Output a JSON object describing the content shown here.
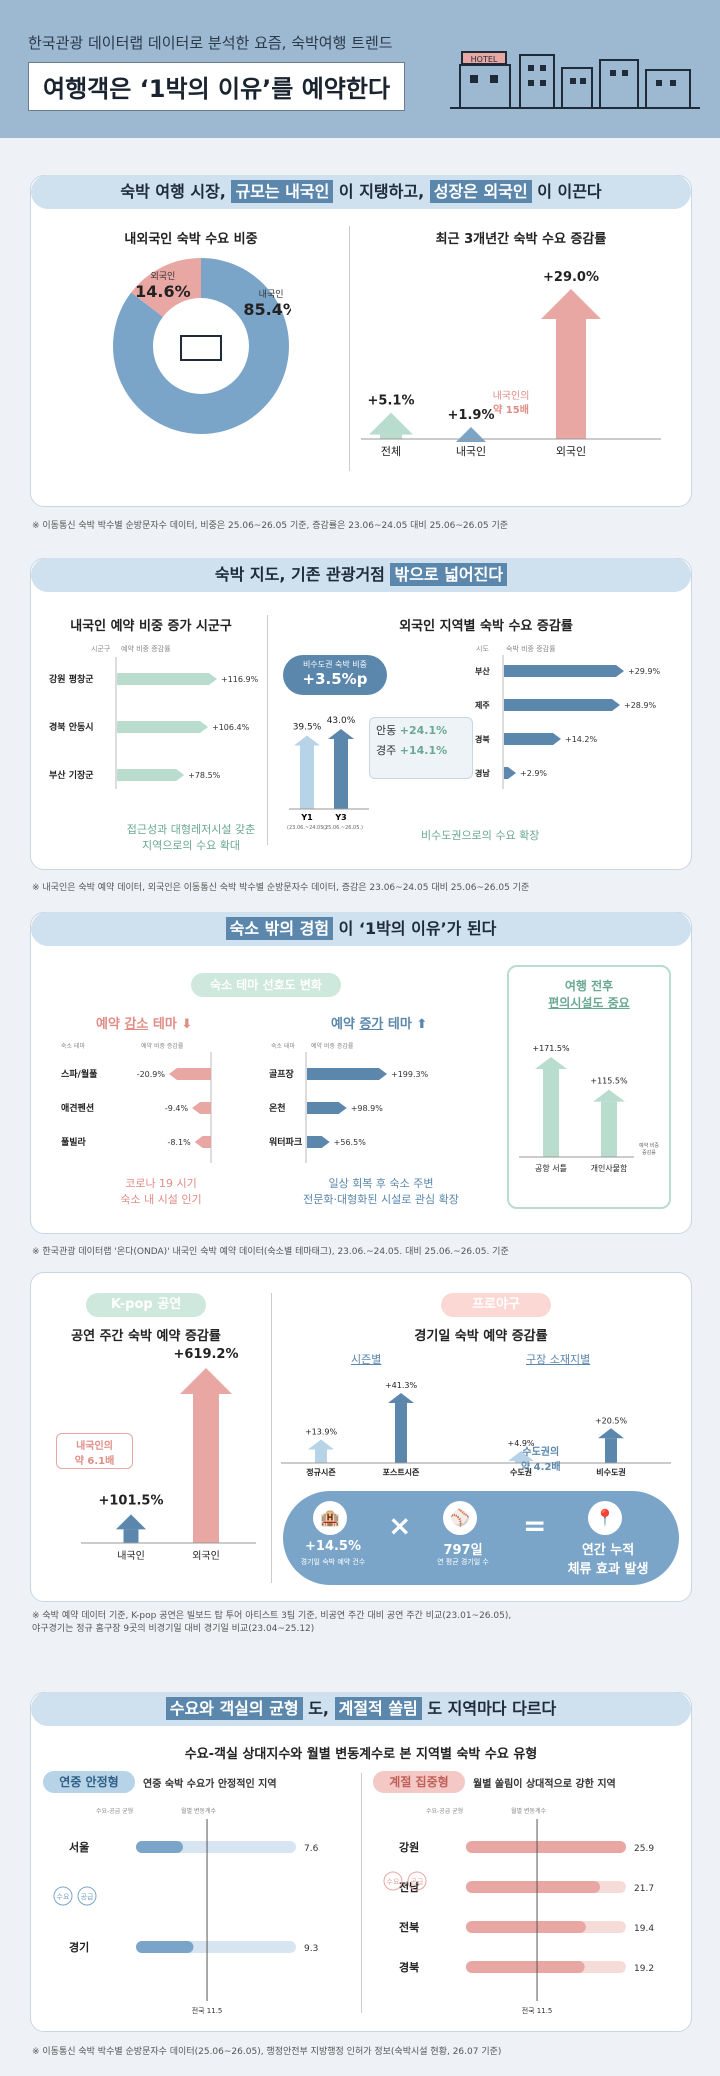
{
  "header": {
    "subtitle": "한국관광 데이터랩 데이터로 분석한 요즘, 숙박여행 트렌드",
    "title": "여행객은 ‘1박의 이유’를 예약한다",
    "hotel_sign": "HOTEL"
  },
  "s1": {
    "title_a": "숙박 여행 시장, ",
    "title_b": "규모는 내국인",
    "title_c": " 이 지탱하고, ",
    "title_d": "성장은 외국인",
    "title_e": " 이 이끈다",
    "pie_title": "내외국인 숙박 수요 비중",
    "growth_title": "최근 3개년간 숙박 수요 증감률",
    "note_foreign_1": "내국인의",
    "note_foreign_2": "약 15배",
    "source": "※ 이동통신 숙박 박수별 순방문자수 데이터, 비중은 25.06~26.05 기준, 증감률은 23.06~24.05 대비 25.06~26.05 기준"
  },
  "s2": {
    "title_a": "숙박 지도, 기존 관광거점 ",
    "title_b": "밖으로 넓어진다",
    "left_title": "내국인 예약 비중 증가 시군구",
    "right_title": "외국인 지역별 숙박 수요 증감률",
    "col_a": "시군구",
    "col_b": "예약 비중 증감률",
    "left_note_1": "접근성과 대형레저시설 갖춘",
    "left_note_2": "지역으로의 수요 확대",
    "mid_badge_1": "비수도권 숙박 비중",
    "mid_badge_2": "+3.5%p",
    "mid_y1": "Y1",
    "mid_y3": "Y3",
    "mid_y1_sub": "(23.06.~24.05.)",
    "mid_y3_sub": "(25.06.~26.05.)",
    "mid_v1": "39.5%",
    "mid_v2": "43.0%",
    "city_1": "안동",
    "city_1_v": "+24.1%",
    "city_2": "경주",
    "city_2_v": "+14.1%",
    "right_col_a": "시도",
    "right_col_b": "숙박 비중 증감률",
    "right_note": "비수도권으로의 수요 확장",
    "source": "※ 내국인은 숙박 예약 데이터, 외국인은 이동통신 숙박 박수별 순방문자수 데이터, 증감은 23.06~24.05 대비 25.06~26.05 기준"
  },
  "s3": {
    "title_a": "숙소 밖의 경험",
    "title_b": " 이 ‘1박의 이유’가 된다",
    "theme_pill": "숙소 테마 선호도 변화",
    "dec_title_a": "예약 ",
    "dec_title_b": "감소",
    "dec_title_c": " 테마",
    "inc_title_a": "예약 ",
    "inc_title_b": "증가",
    "inc_title_c": " 테마",
    "col_a": "숙소 테마",
    "col_b": "예약 비중 증감률",
    "dec_note_1": "코로나 19 시기",
    "dec_note_2": "숙소 내 시설 인기",
    "inc_note_1": "일상 회복 후 숙소 주변",
    "inc_note_2": "전문화·대형화된 시설로 관심 확장",
    "conv_title_1": "여행 전후",
    "conv_title_2": "편의시설도 중요",
    "conv_legend_1": "예약 비중",
    "conv_legend_2": "증감률",
    "source": "※ 한국관광 데이터랩 '온다(ONDA)' 내국인 숙박 예약 데이터(숙소별 테마태그), 23.06.~24.05. 대비 25.06.~26.05. 기준"
  },
  "s4": {
    "kpop_pill": "K-pop 공연",
    "kpop_title": "공연 주간 숙박 예약 증감률",
    "kpop_note_1": "내국인의",
    "kpop_note_2": "약 6.1배",
    "base_pill": "프로야구",
    "base_title": "경기일 숙박 예약 증감률",
    "season_label": "시즌별",
    "region_label": "구장 소재지별",
    "region_note_1": "수도권의",
    "region_note_2": "약 4.2배",
    "bottom_1_val": "+14.5%",
    "bottom_1_lbl": "경기일 숙박 예약 건수",
    "bottom_2_val": "797일",
    "bottom_2_lbl": "연 평균 경기일 수",
    "bottom_3_val_1": "연간 누적",
    "bottom_3_val_2": "체류 효과 발생",
    "source_1": "※ 숙박 예약 데이터 기준, K-pop 공연은 빌보드 탑 투어 아티스트 3팀 기준, 비공연 주간 대비 공연 주간 비교(23.01~26.05),",
    "source_2": "야구경기는 정규 홈구장 9곳의 비경기일 대비 경기일 비교(23.04~25.12)"
  },
  "s5": {
    "title_a": "수요와 객실의 균형",
    "title_b": " 도, ",
    "title_c": "계절적 쏠림",
    "title_d": " 도 지역마다 다르다",
    "subtitle": "수요-객실 상대지수와 월별 변동계수로 본 지역별 숙박 수요 유형",
    "stable_pill": "연중 안정형",
    "stable_desc": "연중 숙박 수요가 안정적인 지역",
    "season_pill": "계절 집중형",
    "season_desc": "월별 쏠림이 상대적으로 강한 지역",
    "col_a": "수요-공급 균형",
    "col_b": "월별 변동계수",
    "avg_label": "전국 11.5",
    "legend_a": "수요",
    "legend_b": "공급",
    "source": "※ 이동통신 숙박 박수별 순방문자수 데이터(25.06~26.05), 행정안전부 지방행정 인허가 정보(숙박시설 현황, 26.07 기준)"
  },
  "chart_data": [
    {
      "type": "pie",
      "title": "내외국인 숙박 수요 비중",
      "labels": [
        "외국인",
        "내국인"
      ],
      "values": [
        14.6,
        85.4
      ],
      "colors": [
        "#e8a7a3",
        "#7ba5c8"
      ]
    },
    {
      "type": "bar",
      "title": "최근 3개년간 숙박 수요 증감률",
      "categories": [
        "전체",
        "내국인",
        "외국인"
      ],
      "values": [
        5.1,
        1.9,
        29.0
      ],
      "labels": [
        "+5.1%",
        "+1.9%",
        "+29.0%"
      ],
      "colors": [
        "#b8dccd",
        "#7ba5c8",
        "#e8a7a3"
      ]
    },
    {
      "type": "bar",
      "title": "내국인 예약 비중 증가 시군구",
      "categories": [
        "강원 평창군",
        "경북 안동시",
        "부산 기장군"
      ],
      "values": [
        116.9,
        106.4,
        78.5
      ],
      "labels": [
        "+116.9%",
        "+106.4%",
        "+78.5%"
      ]
    },
    {
      "type": "bar",
      "title": "비수도권 숙박 비중",
      "categories": [
        "Y1",
        "Y3"
      ],
      "values": [
        39.5,
        43.0
      ],
      "labels": [
        "39.5%",
        "43.0%"
      ]
    },
    {
      "type": "bar",
      "title": "외국인 지역별 숙박 수요 증감률",
      "categories": [
        "부산",
        "제주",
        "경북",
        "경남"
      ],
      "values": [
        29.9,
        28.9,
        14.2,
        2.9
      ],
      "labels": [
        "+29.9%",
        "+28.9%",
        "+14.2%",
        "+2.9%"
      ]
    },
    {
      "type": "bar",
      "title": "예약 감소 테마",
      "categories": [
        "스파/월풀",
        "애견펜션",
        "풀빌라"
      ],
      "values": [
        -20.9,
        -9.4,
        -8.1
      ],
      "labels": [
        "-20.9%",
        "-9.4%",
        "-8.1%"
      ]
    },
    {
      "type": "bar",
      "title": "예약 증가 테마",
      "categories": [
        "골프장",
        "온천",
        "워터파크"
      ],
      "values": [
        199.3,
        98.9,
        56.5
      ],
      "labels": [
        "+199.3%",
        "+98.9%",
        "+56.5%"
      ]
    },
    {
      "type": "bar",
      "title": "여행 전후 편의시설도 중요",
      "categories": [
        "공항 서틀",
        "개인사물함"
      ],
      "values": [
        171.5,
        115.5
      ],
      "labels": [
        "+171.5%",
        "+115.5%"
      ]
    },
    {
      "type": "bar",
      "title": "공연 주간 숙박 예약 증감률",
      "categories": [
        "내국인",
        "외국인"
      ],
      "values": [
        101.5,
        619.2
      ],
      "labels": [
        "+101.5%",
        "+619.2%"
      ]
    },
    {
      "type": "bar",
      "title": "경기일 숙박 예약 증감률",
      "categories": [
        "정규시즌",
        "포스트시즌",
        "수도권",
        "비수도권"
      ],
      "values": [
        13.9,
        41.3,
        4.9,
        20.5
      ],
      "labels": [
        "+13.9%",
        "+41.3%",
        "+4.9%",
        "+20.5%"
      ]
    },
    {
      "type": "bar",
      "title": "연중 안정형",
      "categories": [
        "서울",
        "경기"
      ],
      "values": [
        7.6,
        9.3
      ],
      "labels": [
        "7.6",
        "9.3"
      ],
      "reference": 11.5
    },
    {
      "type": "bar",
      "title": "계절 집중형",
      "categories": [
        "강원",
        "전남",
        "전북",
        "경북"
      ],
      "values": [
        25.9,
        21.7,
        19.4,
        19.2
      ],
      "labels": [
        "25.9",
        "21.7",
        "19.4",
        "19.2"
      ],
      "reference": 11.5
    }
  ],
  "colors": {
    "blue": "#5b87ad",
    "lightblue": "#b7d3e8",
    "pink": "#e8a7a3",
    "mint": "#b8dccd",
    "header": "#9db8d1"
  }
}
